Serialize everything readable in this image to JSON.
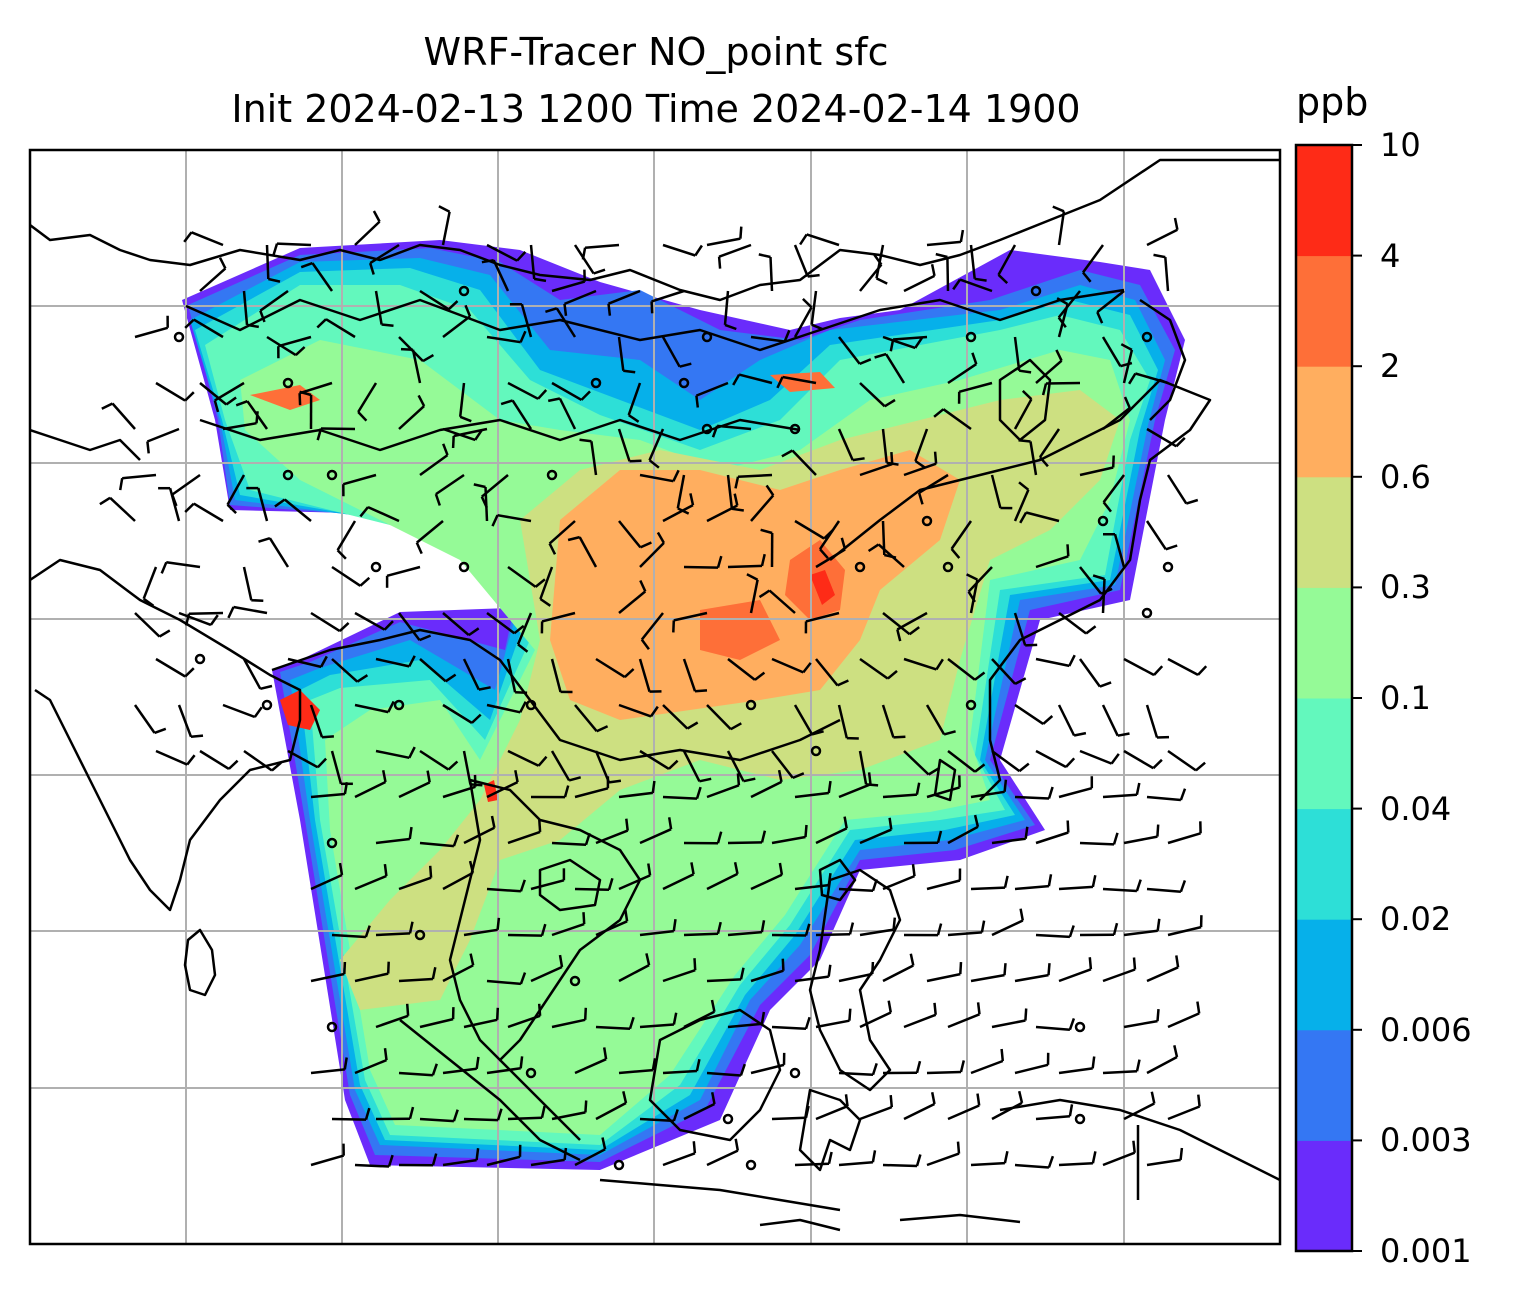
{
  "figure": {
    "title_line_1": "WRF-Tracer NO_point sfc",
    "title_line_2": "Init 2024-02-13 1200 Time 2024-02-14 1900"
  },
  "colorbar": {
    "label": "ppb",
    "levels": [
      "0.001",
      "0.003",
      "0.006",
      "0.02",
      "0.04",
      "0.1",
      "0.3",
      "0.6",
      "2",
      "4",
      "10"
    ],
    "colors": [
      "#6a2cfb",
      "#3477f3",
      "#06b0ea",
      "#2ddfd7",
      "#63f8bd",
      "#95fa97",
      "#cde081",
      "#ffae5f",
      "#fe6f38",
      "#fe2b17"
    ]
  },
  "map": {
    "gridlines": true,
    "coastline_color": "#000000",
    "gridline_color": "#b0b0b0",
    "wind_barb_color": "#000000"
  }
}
